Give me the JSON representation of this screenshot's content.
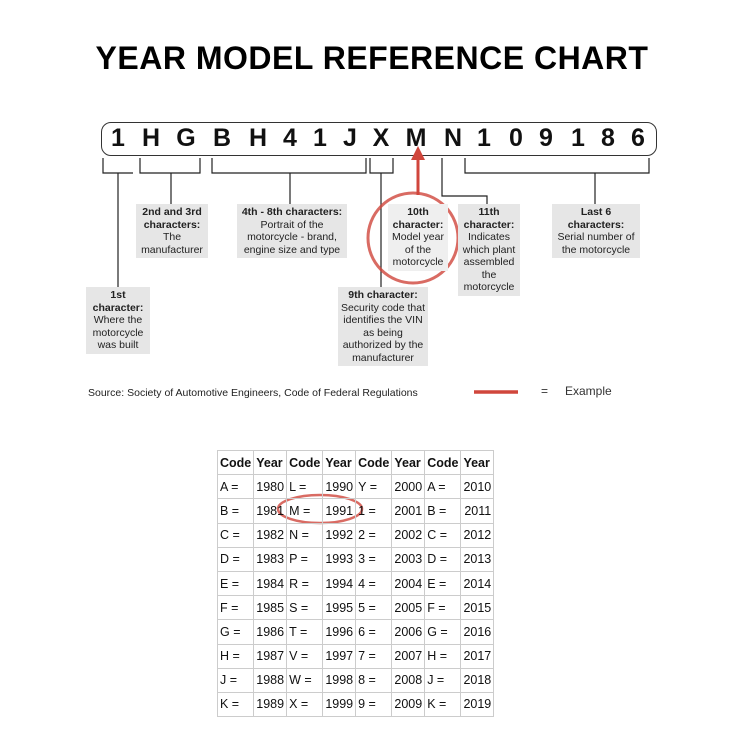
{
  "title": "YEAR MODEL REFERENCE CHART",
  "vin": [
    "1",
    "H",
    "G",
    "B",
    "H",
    "4",
    "1",
    "J",
    "X",
    "M",
    "N",
    "1",
    "0",
    "9",
    "1",
    "8",
    "6"
  ],
  "labels": {
    "first": {
      "head": "1st character:",
      "body": "Where the motorcycle was built"
    },
    "second_third": {
      "head": "2nd and 3rd characters:",
      "body": "The manufacturer"
    },
    "fourth_eighth": {
      "head": "4th - 8th characters:",
      "body": "Portrait of the motorcycle - brand, engine size and type"
    },
    "ninth": {
      "head": "9th character:",
      "body": "Security code that identifies the VIN as being authorized by the manufacturer"
    },
    "tenth": {
      "head": "10th character:",
      "body": "Model year of the motorcycle"
    },
    "eleventh": {
      "head": "11th character:",
      "body": "Indicates which plant assembled the motorcycle"
    },
    "last6": {
      "head": "Last 6 characters:",
      "body": "Serial number of the motorcycle"
    }
  },
  "source": "Source:  Society of Automotive Engineers, Code of Federal Regulations",
  "legend": {
    "equals": "=",
    "label": "Example",
    "color": "#d0463c"
  },
  "table": {
    "headers": [
      "Code",
      "Year",
      "Code",
      "Year",
      "Code",
      "Year",
      "Code",
      "Year"
    ],
    "rows": [
      [
        "A =",
        "1980",
        "L =",
        "1990",
        "Y =",
        "2000",
        "A =",
        "2010"
      ],
      [
        "B =",
        "1981",
        "M =",
        "1991",
        "1 =",
        "2001",
        "B =",
        "2011"
      ],
      [
        "C =",
        "1982",
        "N =",
        "1992",
        "2 =",
        "2002",
        "C =",
        "2012"
      ],
      [
        "D =",
        "1983",
        "P =",
        "1993",
        "3 =",
        "2003",
        "D =",
        "2013"
      ],
      [
        "E =",
        "1984",
        "R =",
        "1994",
        "4 =",
        "2004",
        "E =",
        "2014"
      ],
      [
        "F =",
        "1985",
        "S =",
        "1995",
        "5 =",
        "2005",
        "F =",
        "2015"
      ],
      [
        "G =",
        "1986",
        "T =",
        "1996",
        "6 =",
        "2006",
        "G =",
        "2016"
      ],
      [
        "H =",
        "1987",
        "V =",
        "1997",
        "7 =",
        "2007",
        "H =",
        "2017"
      ],
      [
        "J =",
        "1988",
        "W =",
        "1998",
        "8 =",
        "2008",
        "J =",
        "2018"
      ],
      [
        "K =",
        "1989",
        "X =",
        "1999",
        "9 =",
        "2009",
        "K =",
        "2019"
      ]
    ]
  }
}
